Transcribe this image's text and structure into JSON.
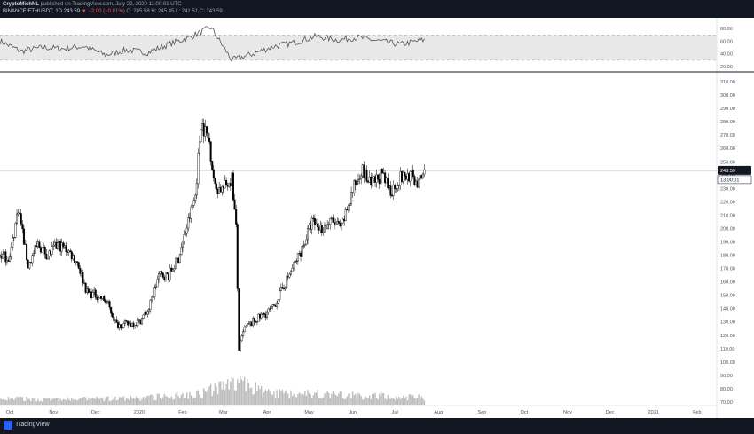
{
  "header": {
    "author": "CryptoMichNL",
    "published": "published on TradingView.com, July 22, 2020 11:00:01 UTC",
    "symbol": "BINANCE:ETHUSDT, 1D",
    "last": "243.59",
    "change": "▼ −2.00 (−0.81%)",
    "ohlc": "O: 245.58 H: 245.45 L: 241.51 C: 243.59"
  },
  "footer": {
    "brand": "TradingView"
  },
  "colors": {
    "up": "#ffffff",
    "down": "#000000",
    "price_line": "#888888",
    "rsi_line": "#555555",
    "rsi_band": "#e8e8e8",
    "volume": "#bdbdbd",
    "frame": "#131722",
    "price_tag_bg": "#131722"
  },
  "chart_data": [
    {
      "type": "line",
      "indicator": "RSI",
      "ylim": [
        20,
        90
      ],
      "ticks": [
        20,
        40,
        60,
        80
      ],
      "tick_labels": [
        "20.00",
        "40.00",
        "60.00",
        "80.00"
      ],
      "band": [
        30,
        70
      ],
      "x": [
        "2019-09-24",
        "2019-10-09",
        "2019-10-24",
        "2019-11-08",
        "2019-11-23",
        "2019-12-08",
        "2019-12-23",
        "2020-01-07",
        "2020-01-22",
        "2020-02-06",
        "2020-02-21",
        "2020-03-07",
        "2020-03-22",
        "2020-04-06",
        "2020-04-21",
        "2020-05-06",
        "2020-05-21",
        "2020-06-05",
        "2020-06-20",
        "2020-07-05",
        "2020-07-22"
      ],
      "values": [
        60,
        44,
        50,
        48,
        52,
        38,
        46,
        42,
        55,
        66,
        82,
        30,
        40,
        52,
        58,
        68,
        62,
        66,
        60,
        55,
        62
      ]
    },
    {
      "type": "candlestick",
      "title": "BINANCE:ETHUSDT, 1D",
      "yticks": [
        70,
        80,
        90,
        100,
        110,
        120,
        130,
        140,
        150,
        160,
        170,
        180,
        190,
        200,
        210,
        220,
        230,
        240,
        250,
        260,
        270,
        280,
        290,
        300,
        310
      ],
      "ytick_labels": [
        "70.00",
        "80.00",
        "90.00",
        "100.00",
        "110.00",
        "120.00",
        "130.00",
        "140.00",
        "150.00",
        "160.00",
        "170.00",
        "180.00",
        "190.00",
        "200.00",
        "210.00",
        "220.00",
        "230.00",
        "240.00",
        "250.00",
        "260.00",
        "270.00",
        "280.00",
        "290.00",
        "300.00",
        "310.00"
      ],
      "xticks": [
        "2019-10-01",
        "2019-11-01",
        "2019-12-01",
        "2020-01-01",
        "2020-02-01",
        "2020-03-01",
        "2020-04-01",
        "2020-05-01",
        "2020-06-01",
        "2020-07-01",
        "2020-08-01",
        "2020-09-01",
        "2020-10-01",
        "2020-11-01",
        "2020-12-01",
        "2021-01-01",
        "2021-02-01"
      ],
      "xtick_labels": [
        "Oct",
        "Nov",
        "Dec",
        "2020",
        "Feb",
        "Mar",
        "Apr",
        "May",
        "Jun",
        "Jul",
        "Aug",
        "Sep",
        "Oct",
        "Nov",
        "Dec",
        "2021",
        "Feb"
      ],
      "x_range": [
        "2019-09-24",
        "2021-02-15"
      ],
      "ylim": [
        68,
        314
      ],
      "last_price": 243.59,
      "last_price_label": "243.59",
      "countdown_label": "13:00:01",
      "price_path": [
        [
          "2019-09-24",
          180
        ],
        [
          "2019-10-01",
          178
        ],
        [
          "2019-10-07",
          216
        ],
        [
          "2019-10-14",
          172
        ],
        [
          "2019-10-21",
          188
        ],
        [
          "2019-10-28",
          180
        ],
        [
          "2019-11-04",
          188
        ],
        [
          "2019-11-11",
          184
        ],
        [
          "2019-11-18",
          175
        ],
        [
          "2019-11-25",
          152
        ],
        [
          "2019-12-02",
          150
        ],
        [
          "2019-12-09",
          145
        ],
        [
          "2019-12-16",
          128
        ],
        [
          "2019-12-23",
          128
        ],
        [
          "2020-01-01",
          130
        ],
        [
          "2020-01-08",
          140
        ],
        [
          "2020-01-15",
          165
        ],
        [
          "2020-01-22",
          165
        ],
        [
          "2020-01-29",
          178
        ],
        [
          "2020-02-05",
          205
        ],
        [
          "2020-02-10",
          225
        ],
        [
          "2020-02-14",
          280
        ],
        [
          "2020-02-20",
          265
        ],
        [
          "2020-02-24",
          230
        ],
        [
          "2020-03-01",
          230
        ],
        [
          "2020-03-07",
          238
        ],
        [
          "2020-03-10",
          200
        ],
        [
          "2020-03-12",
          110
        ],
        [
          "2020-03-16",
          125
        ],
        [
          "2020-03-22",
          130
        ],
        [
          "2020-03-29",
          135
        ],
        [
          "2020-04-05",
          140
        ],
        [
          "2020-04-12",
          155
        ],
        [
          "2020-04-19",
          170
        ],
        [
          "2020-04-26",
          185
        ],
        [
          "2020-05-03",
          205
        ],
        [
          "2020-05-10",
          200
        ],
        [
          "2020-05-17",
          205
        ],
        [
          "2020-05-24",
          200
        ],
        [
          "2020-05-31",
          225
        ],
        [
          "2020-06-07",
          245
        ],
        [
          "2020-06-14",
          232
        ],
        [
          "2020-06-21",
          240
        ],
        [
          "2020-06-28",
          228
        ],
        [
          "2020-07-05",
          238
        ],
        [
          "2020-07-12",
          240
        ],
        [
          "2020-07-18",
          233
        ],
        [
          "2020-07-22",
          243.59
        ]
      ],
      "volume_profile": [
        [
          "2019-09-24",
          0.25
        ],
        [
          "2019-11-01",
          0.2
        ],
        [
          "2020-01-01",
          0.25
        ],
        [
          "2020-02-14",
          0.45
        ],
        [
          "2020-03-12",
          0.9
        ],
        [
          "2020-04-01",
          0.45
        ],
        [
          "2020-05-01",
          0.45
        ],
        [
          "2020-06-01",
          0.35
        ],
        [
          "2020-07-22",
          0.28
        ]
      ]
    }
  ]
}
